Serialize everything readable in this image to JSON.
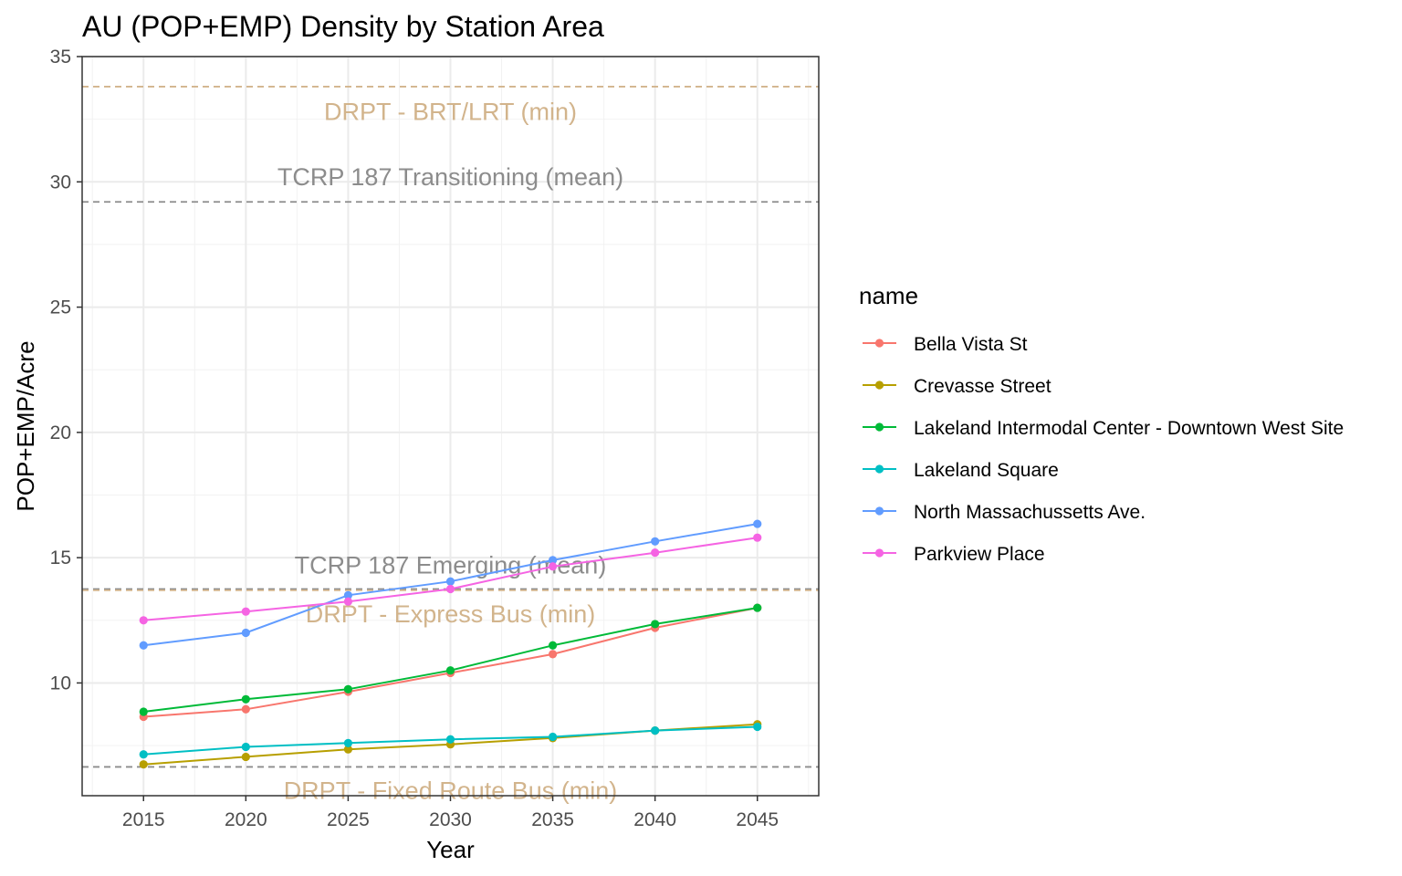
{
  "chart_data": {
    "type": "line",
    "title": "AU (POP+EMP) Density by Station Area",
    "xlabel": "Year",
    "ylabel": "POP+EMP/Acre",
    "xlim": [
      2012,
      2048
    ],
    "ylim": [
      5.5,
      35
    ],
    "x_ticks": [
      2015,
      2020,
      2025,
      2030,
      2035,
      2040,
      2045
    ],
    "y_ticks": [
      10,
      15,
      20,
      25,
      30,
      35
    ],
    "grid": true,
    "legend": {
      "title": "name",
      "position": "right"
    },
    "x": [
      2015,
      2020,
      2025,
      2030,
      2035,
      2040,
      2045
    ],
    "series": [
      {
        "name": "Bella Vista St",
        "color": "#F8766D",
        "values": [
          8.65,
          8.95,
          9.65,
          10.4,
          11.15,
          12.2,
          13.0
        ]
      },
      {
        "name": "Crevasse Street",
        "color": "#B79F00",
        "values": [
          6.75,
          7.05,
          7.35,
          7.55,
          7.8,
          8.1,
          8.35
        ]
      },
      {
        "name": "Lakeland Intermodal Center - Downtown West Site",
        "color": "#00BA38",
        "values": [
          8.85,
          9.35,
          9.75,
          10.5,
          11.5,
          12.35,
          13.0
        ]
      },
      {
        "name": "Lakeland Square",
        "color": "#00BFC4",
        "values": [
          7.15,
          7.45,
          7.6,
          7.75,
          7.85,
          8.1,
          8.25
        ]
      },
      {
        "name": "North Massachussetts Ave.",
        "color": "#619CFF",
        "values": [
          11.5,
          12.0,
          13.5,
          14.05,
          14.9,
          15.65,
          16.35
        ]
      },
      {
        "name": "Parkview Place",
        "color": "#F564E3",
        "values": [
          12.5,
          12.85,
          13.25,
          13.75,
          14.65,
          15.2,
          15.8
        ]
      }
    ],
    "reference_lines": [
      {
        "label": "DRPT - BRT/LRT (min)",
        "value": 33.8,
        "color": "#D2B48C",
        "label_value": 32.8
      },
      {
        "label": "TCRP 187 Transitioning (mean)",
        "value": 29.2,
        "color": "#8C8C8C",
        "label_value": 30.2
      },
      {
        "label": "TCRP 187 Emerging (mean)",
        "value": 13.75,
        "color": "#8C8C8C",
        "label_value": 14.7
      },
      {
        "label": "DRPT - Express Bus (min)",
        "value": 13.7,
        "color": "#D2B48C",
        "label_value": 12.75
      },
      {
        "label": "DRPT - Fixed Route Bus (min)",
        "value": 6.65,
        "color": "#8C8C8C",
        "label_color": "#D2B48C",
        "label_value": 5.7
      }
    ]
  }
}
